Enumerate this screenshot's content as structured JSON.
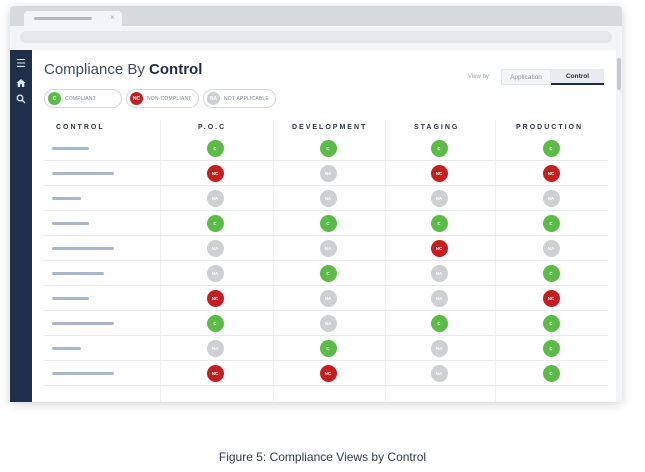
{
  "status_colors": {
    "C": "#5bbb47",
    "NC": "#c41e1e",
    "NA": "#cdcfd3"
  },
  "browser": {
    "close_glyph": "×",
    "dots": [
      "#6cc04a",
      "#f5b731",
      "#e3413a"
    ]
  },
  "sidebar": {
    "icons": [
      "menu-icon",
      "home-icon",
      "search-icon"
    ]
  },
  "page": {
    "title_prefix": "Compliance By ",
    "title_bold": "Control",
    "view_by_label": "View by:",
    "view_options": [
      "Application",
      "Control"
    ],
    "view_selected": "Control"
  },
  "legend": [
    {
      "code": "C",
      "label": "COMPLIANT"
    },
    {
      "code": "NC",
      "label": "NON-COMPLIANT"
    },
    {
      "code": "NA",
      "label": "NOT APPLICABLE"
    }
  ],
  "table": {
    "columns": [
      "CONTROL",
      "P.O.C",
      "DEVELOPMENT",
      "STAGING",
      "PRODUCTION"
    ],
    "rows": [
      {
        "placeholder_fraction": 0.6,
        "statuses": [
          "C",
          "C",
          "C",
          "C"
        ]
      },
      {
        "placeholder_fraction": 1.0,
        "statuses": [
          "NC",
          "NA",
          "NC",
          "NC"
        ]
      },
      {
        "placeholder_fraction": 0.47,
        "statuses": [
          "NA",
          "NA",
          "NA",
          "NA"
        ]
      },
      {
        "placeholder_fraction": 0.6,
        "statuses": [
          "C",
          "C",
          "C",
          "C"
        ]
      },
      {
        "placeholder_fraction": 1.0,
        "statuses": [
          "NA",
          "NA",
          "NC",
          "NA"
        ]
      },
      {
        "placeholder_fraction": 0.84,
        "statuses": [
          "NA",
          "C",
          "NA",
          "C"
        ]
      },
      {
        "placeholder_fraction": 0.6,
        "statuses": [
          "NC",
          "NA",
          "NA",
          "NC"
        ]
      },
      {
        "placeholder_fraction": 1.0,
        "statuses": [
          "C",
          "NA",
          "C",
          "C"
        ]
      },
      {
        "placeholder_fraction": 0.47,
        "statuses": [
          "NA",
          "C",
          "NA",
          "C"
        ]
      },
      {
        "placeholder_fraction": 1.0,
        "statuses": [
          "NC",
          "NC",
          "NA",
          "C"
        ]
      }
    ]
  },
  "caption": "Figure 5: Compliance Views by Control"
}
